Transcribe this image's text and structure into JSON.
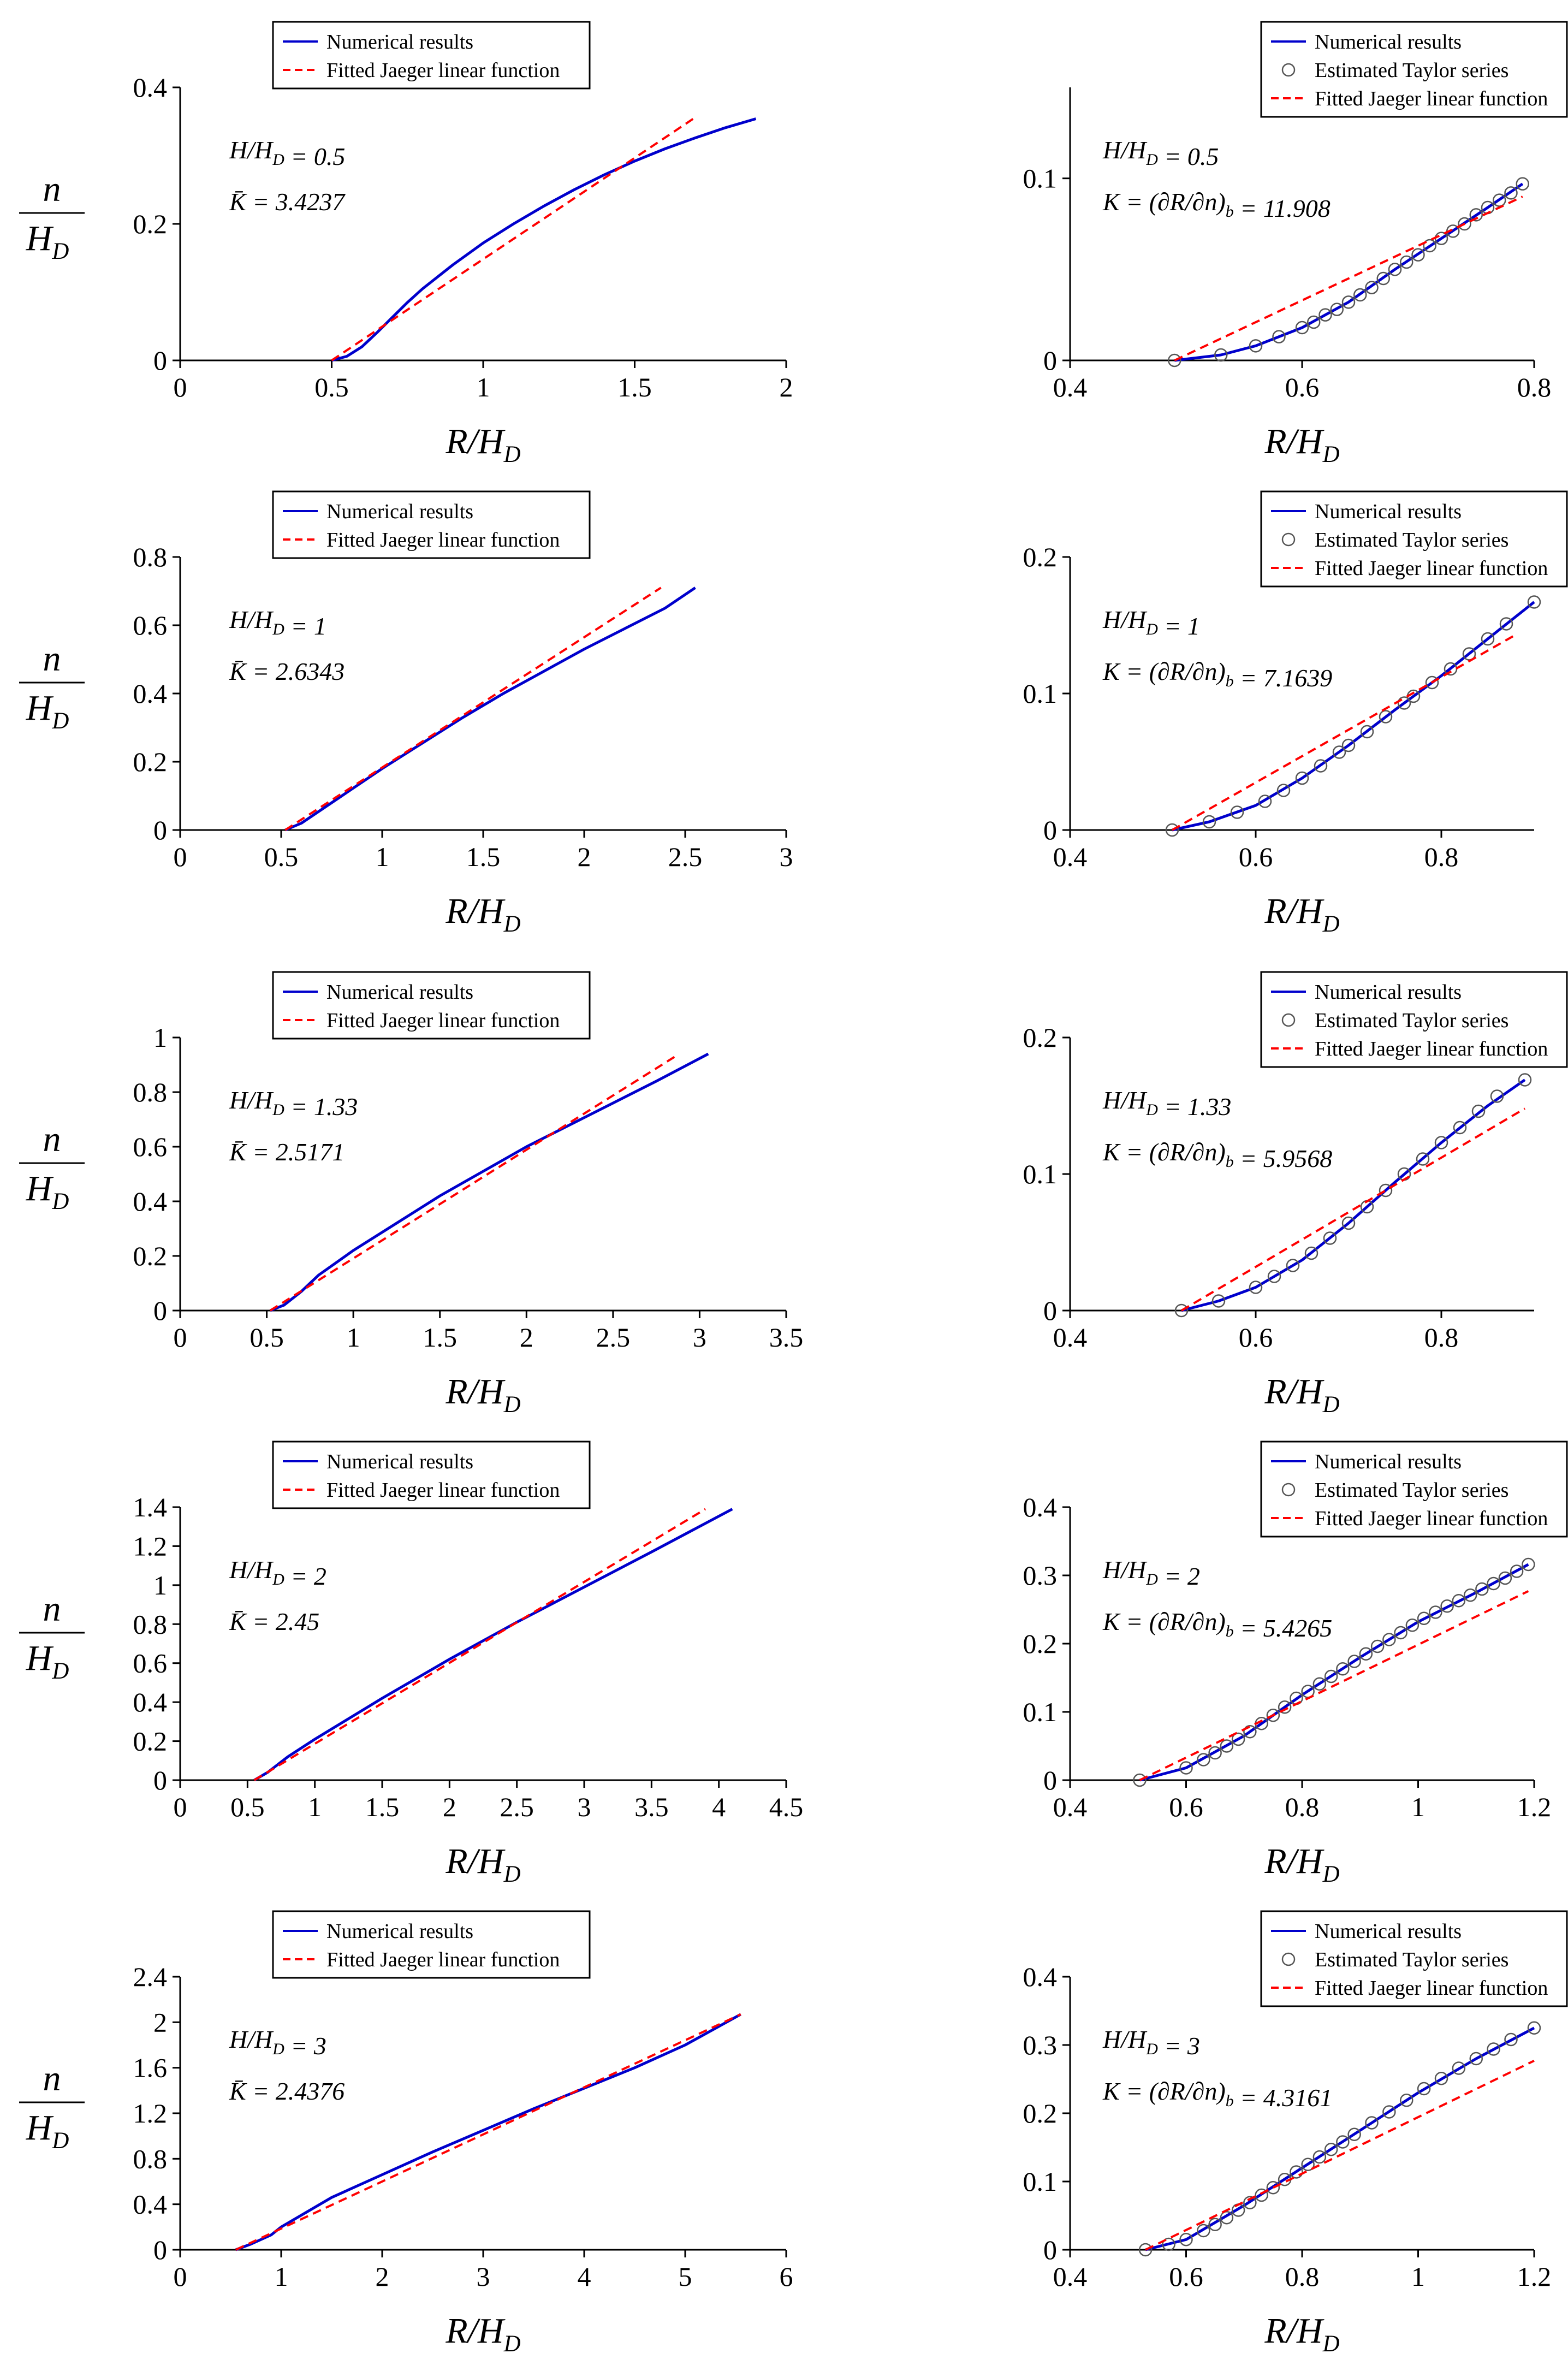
{
  "colors": {
    "numerical": "#0000cc",
    "fitted": "#ff0000",
    "taylor_marker": "#555555",
    "axis": "#000000"
  },
  "chart_data": [
    {
      "type": "line",
      "row": 1,
      "col": 1,
      "xlabel": "R/H_D",
      "ylabel": "n/H_D",
      "xlim": [
        0,
        2
      ],
      "ylim": [
        0,
        0.4
      ],
      "xticks": [
        0,
        0.5,
        1,
        1.5,
        2
      ],
      "yticks": [
        0,
        0.2,
        0.4
      ],
      "annotations": [
        "H/H_D = 0.5",
        "K̄ = 3.4237"
      ],
      "legend": [
        "Numerical results",
        "Fitted Jaeger linear function"
      ],
      "series": [
        {
          "name": "Numerical results",
          "style": "solid",
          "x": [
            0.5,
            0.55,
            0.6,
            0.65,
            0.7,
            0.75,
            0.8,
            0.9,
            1.0,
            1.1,
            1.2,
            1.3,
            1.4,
            1.5,
            1.6,
            1.7,
            1.8,
            1.9
          ],
          "y": [
            0,
            0.006,
            0.02,
            0.041,
            0.063,
            0.085,
            0.105,
            0.14,
            0.172,
            0.2,
            0.226,
            0.25,
            0.272,
            0.292,
            0.31,
            0.326,
            0.341,
            0.354
          ]
        },
        {
          "name": "Fitted Jaeger linear function",
          "style": "dashed",
          "x": [
            0.5,
            1.7
          ],
          "y": [
            0,
            0.356
          ]
        }
      ]
    },
    {
      "type": "line",
      "row": 1,
      "col": 2,
      "xlabel": "R/H_D",
      "ylabel": "",
      "xlim": [
        0.4,
        0.8
      ],
      "ylim": [
        0,
        0.15
      ],
      "xticks": [
        0.4,
        0.6,
        0.8
      ],
      "yticks": [
        0,
        0.1
      ],
      "annotations": [
        "H/H_D = 0.5",
        "K = (∂R/∂n)_b = 11.908"
      ],
      "legend": [
        "Numerical results",
        "Estimated Taylor series",
        "Fitted Jaeger linear function"
      ],
      "series": [
        {
          "name": "Numerical results",
          "style": "solid",
          "x": [
            0.49,
            0.53,
            0.56,
            0.6,
            0.64,
            0.68,
            0.72,
            0.76,
            0.79
          ],
          "y": [
            0,
            0.003,
            0.008,
            0.018,
            0.032,
            0.05,
            0.067,
            0.084,
            0.097
          ]
        },
        {
          "name": "Estimated Taylor series",
          "style": "marker",
          "x": [
            0.49,
            0.53,
            0.56,
            0.58,
            0.6,
            0.61,
            0.62,
            0.63,
            0.64,
            0.65,
            0.66,
            0.67,
            0.68,
            0.69,
            0.7,
            0.71,
            0.72,
            0.73,
            0.74,
            0.75,
            0.76,
            0.77,
            0.78,
            0.79
          ],
          "y": [
            0,
            0.003,
            0.008,
            0.013,
            0.018,
            0.021,
            0.025,
            0.028,
            0.032,
            0.036,
            0.04,
            0.045,
            0.05,
            0.054,
            0.058,
            0.063,
            0.067,
            0.071,
            0.075,
            0.08,
            0.084,
            0.088,
            0.092,
            0.097
          ]
        },
        {
          "name": "Fitted Jaeger linear function",
          "style": "dashed",
          "x": [
            0.49,
            0.79
          ],
          "y": [
            0,
            0.09
          ]
        }
      ]
    },
    {
      "type": "line",
      "row": 2,
      "col": 1,
      "xlabel": "R/H_D",
      "ylabel": "n/H_D",
      "xlim": [
        0,
        3
      ],
      "ylim": [
        0,
        0.8
      ],
      "xticks": [
        0,
        0.5,
        1,
        1.5,
        2,
        2.5,
        3
      ],
      "yticks": [
        0,
        0.2,
        0.4,
        0.6,
        0.8
      ],
      "annotations": [
        "H/H_D = 1",
        "K̄ = 2.6343"
      ],
      "legend": [
        "Numerical results",
        "Fitted Jaeger linear function"
      ],
      "series": [
        {
          "name": "Numerical results",
          "style": "solid",
          "x": [
            0.52,
            0.6,
            0.7,
            0.8,
            1.0,
            1.2,
            1.4,
            1.6,
            1.8,
            2.0,
            2.2,
            2.4,
            2.55
          ],
          "y": [
            0,
            0.02,
            0.06,
            0.1,
            0.18,
            0.255,
            0.33,
            0.4,
            0.465,
            0.53,
            0.59,
            0.65,
            0.71
          ]
        },
        {
          "name": "Fitted Jaeger linear function",
          "style": "dashed",
          "x": [
            0.52,
            2.38
          ],
          "y": [
            0,
            0.71
          ]
        }
      ]
    },
    {
      "type": "line",
      "row": 2,
      "col": 2,
      "xlabel": "R/H_D",
      "ylabel": "",
      "xlim": [
        0.4,
        0.9
      ],
      "ylim": [
        0,
        0.2
      ],
      "xticks": [
        0.4,
        0.6,
        0.8
      ],
      "yticks": [
        0,
        0.1,
        0.2
      ],
      "annotations": [
        "H/H_D = 1",
        "K = (∂R/∂n)_b = 7.1639"
      ],
      "legend": [
        "Numerical results",
        "Estimated Taylor series",
        "Fitted Jaeger linear function"
      ],
      "series": [
        {
          "name": "Numerical results",
          "style": "solid",
          "x": [
            0.51,
            0.55,
            0.6,
            0.65,
            0.7,
            0.75,
            0.8,
            0.85,
            0.9
          ],
          "y": [
            0,
            0.006,
            0.018,
            0.038,
            0.062,
            0.088,
            0.113,
            0.14,
            0.167
          ]
        },
        {
          "name": "Estimated Taylor series",
          "style": "marker",
          "x": [
            0.51,
            0.55,
            0.58,
            0.61,
            0.63,
            0.65,
            0.67,
            0.69,
            0.7,
            0.72,
            0.74,
            0.76,
            0.77,
            0.79,
            0.81,
            0.83,
            0.85,
            0.87,
            0.9
          ],
          "y": [
            0,
            0.006,
            0.013,
            0.021,
            0.029,
            0.038,
            0.047,
            0.057,
            0.062,
            0.072,
            0.083,
            0.093,
            0.098,
            0.108,
            0.118,
            0.129,
            0.14,
            0.151,
            0.167
          ]
        },
        {
          "name": "Fitted Jaeger linear function",
          "style": "dashed",
          "x": [
            0.51,
            0.88
          ],
          "y": [
            0,
            0.143
          ]
        }
      ]
    },
    {
      "type": "line",
      "row": 3,
      "col": 1,
      "xlabel": "R/H_D",
      "ylabel": "n/H_D",
      "xlim": [
        0,
        3.5
      ],
      "ylim": [
        0,
        1
      ],
      "xticks": [
        0,
        0.5,
        1,
        1.5,
        2,
        2.5,
        3,
        3.5
      ],
      "yticks": [
        0,
        0.2,
        0.4,
        0.6,
        0.8,
        1
      ],
      "annotations": [
        "H/H_D = 1.33",
        "K̄ = 2.5171"
      ],
      "legend": [
        "Numerical results",
        "Fitted Jaeger linear function"
      ],
      "series": [
        {
          "name": "Numerical results",
          "style": "solid",
          "x": [
            0.52,
            0.6,
            0.7,
            0.8,
            1.0,
            1.25,
            1.5,
            1.75,
            2.0,
            2.25,
            2.5,
            2.75,
            3.05
          ],
          "y": [
            0,
            0.02,
            0.07,
            0.13,
            0.22,
            0.32,
            0.42,
            0.51,
            0.6,
            0.68,
            0.76,
            0.84,
            0.94
          ]
        },
        {
          "name": "Fitted Jaeger linear function",
          "style": "dashed",
          "x": [
            0.52,
            2.87
          ],
          "y": [
            0,
            0.935
          ]
        }
      ]
    },
    {
      "type": "line",
      "row": 3,
      "col": 2,
      "xlabel": "R/H_D",
      "ylabel": "",
      "xlim": [
        0.4,
        0.9
      ],
      "ylim": [
        0,
        0.2
      ],
      "xticks": [
        0.4,
        0.6,
        0.8
      ],
      "yticks": [
        0,
        0.1,
        0.2
      ],
      "annotations": [
        "H/H_D = 1.33",
        "K = (∂R/∂n)_b = 5.9568"
      ],
      "legend": [
        "Numerical results",
        "Estimated Taylor series",
        "Fitted Jaeger linear function"
      ],
      "series": [
        {
          "name": "Numerical results",
          "style": "solid",
          "x": [
            0.52,
            0.56,
            0.6,
            0.65,
            0.7,
            0.75,
            0.8,
            0.85,
            0.89
          ],
          "y": [
            0,
            0.007,
            0.017,
            0.037,
            0.064,
            0.094,
            0.123,
            0.15,
            0.169
          ]
        },
        {
          "name": "Estimated Taylor series",
          "style": "marker",
          "x": [
            0.52,
            0.56,
            0.6,
            0.62,
            0.64,
            0.66,
            0.68,
            0.7,
            0.72,
            0.74,
            0.76,
            0.78,
            0.8,
            0.82,
            0.84,
            0.86,
            0.89
          ],
          "y": [
            0,
            0.007,
            0.017,
            0.025,
            0.033,
            0.042,
            0.053,
            0.064,
            0.076,
            0.088,
            0.1,
            0.111,
            0.123,
            0.134,
            0.146,
            0.157,
            0.169
          ]
        },
        {
          "name": "Fitted Jaeger linear function",
          "style": "dashed",
          "x": [
            0.52,
            0.89
          ],
          "y": [
            0,
            0.148
          ]
        }
      ]
    },
    {
      "type": "line",
      "row": 4,
      "col": 1,
      "xlabel": "R/H_D",
      "ylabel": "n/H_D",
      "xlim": [
        0,
        4.5
      ],
      "ylim": [
        0,
        1.4
      ],
      "xticks": [
        0,
        0.5,
        1,
        1.5,
        2,
        2.5,
        3,
        3.5,
        4,
        4.5
      ],
      "yticks": [
        0,
        0.2,
        0.4,
        0.6,
        0.8,
        1,
        1.2,
        1.4
      ],
      "annotations": [
        "H/H_D = 2",
        "K̄ = 2.45"
      ],
      "legend": [
        "Numerical results",
        "Fitted Jaeger linear function"
      ],
      "series": [
        {
          "name": "Numerical results",
          "style": "solid",
          "x": [
            0.55,
            0.65,
            0.8,
            1.0,
            1.5,
            2.0,
            2.5,
            3.0,
            3.5,
            4.1
          ],
          "y": [
            0,
            0.04,
            0.12,
            0.21,
            0.42,
            0.62,
            0.81,
            0.99,
            1.17,
            1.39
          ]
        },
        {
          "name": "Fitted Jaeger linear function",
          "style": "dashed",
          "x": [
            0.55,
            3.9
          ],
          "y": [
            0,
            1.39
          ]
        }
      ]
    },
    {
      "type": "line",
      "row": 4,
      "col": 2,
      "xlabel": "R/H_D",
      "ylabel": "",
      "xlim": [
        0.4,
        1.2
      ],
      "ylim": [
        0,
        0.4
      ],
      "xticks": [
        0.4,
        0.6,
        0.8,
        1,
        1.2
      ],
      "yticks": [
        0,
        0.1,
        0.2,
        0.3,
        0.4
      ],
      "annotations": [
        "H/H_D = 2",
        "K = (∂R/∂n)_b = 5.4265"
      ],
      "legend": [
        "Numerical results",
        "Estimated Taylor series",
        "Fitted Jaeger linear function"
      ],
      "series": [
        {
          "name": "Numerical results",
          "style": "solid",
          "x": [
            0.52,
            0.6,
            0.7,
            0.8,
            0.9,
            1.0,
            1.1,
            1.19
          ],
          "y": [
            0,
            0.018,
            0.065,
            0.125,
            0.18,
            0.232,
            0.275,
            0.316
          ]
        },
        {
          "name": "Estimated Taylor series",
          "style": "marker",
          "x": [
            0.52,
            0.6,
            0.63,
            0.65,
            0.67,
            0.69,
            0.71,
            0.73,
            0.75,
            0.77,
            0.79,
            0.81,
            0.83,
            0.85,
            0.87,
            0.89,
            0.91,
            0.93,
            0.95,
            0.97,
            0.99,
            1.01,
            1.03,
            1.05,
            1.07,
            1.09,
            1.11,
            1.13,
            1.15,
            1.17,
            1.19
          ],
          "y": [
            0,
            0.018,
            0.03,
            0.04,
            0.05,
            0.06,
            0.071,
            0.083,
            0.095,
            0.107,
            0.12,
            0.13,
            0.141,
            0.152,
            0.163,
            0.174,
            0.185,
            0.196,
            0.206,
            0.216,
            0.227,
            0.237,
            0.246,
            0.255,
            0.263,
            0.271,
            0.28,
            0.288,
            0.296,
            0.306,
            0.316
          ]
        },
        {
          "name": "Fitted Jaeger linear function",
          "style": "dashed",
          "x": [
            0.52,
            1.19
          ],
          "y": [
            0,
            0.277
          ]
        }
      ]
    },
    {
      "type": "line",
      "row": 5,
      "col": 1,
      "xlabel": "R/H_D",
      "ylabel": "n/H_D",
      "xlim": [
        0,
        6
      ],
      "ylim": [
        0,
        2.4
      ],
      "xticks": [
        0,
        1,
        2,
        3,
        4,
        5,
        6
      ],
      "yticks": [
        0,
        0.4,
        0.8,
        1.2,
        1.6,
        2,
        2.4
      ],
      "annotations": [
        "H/H_D = 3",
        "K̄ = 2.4376"
      ],
      "legend": [
        "Numerical results",
        "Fitted Jaeger linear function"
      ],
      "series": [
        {
          "name": "Numerical results",
          "style": "solid",
          "x": [
            0.55,
            0.7,
            0.9,
            1.0,
            1.5,
            2.0,
            2.5,
            3.0,
            3.5,
            4.0,
            4.5,
            5.0,
            5.55
          ],
          "y": [
            0,
            0.05,
            0.13,
            0.2,
            0.46,
            0.66,
            0.86,
            1.05,
            1.24,
            1.42,
            1.6,
            1.8,
            2.07
          ]
        },
        {
          "name": "Fitted Jaeger linear function",
          "style": "dashed",
          "x": [
            0.55,
            5.55
          ],
          "y": [
            0,
            2.07
          ]
        }
      ]
    },
    {
      "type": "line",
      "row": 5,
      "col": 2,
      "xlabel": "R/H_D",
      "ylabel": "",
      "xlim": [
        0.4,
        1.2
      ],
      "ylim": [
        0,
        0.4
      ],
      "xticks": [
        0.4,
        0.6,
        0.8,
        1,
        1.2
      ],
      "yticks": [
        0,
        0.1,
        0.2,
        0.3,
        0.4
      ],
      "annotations": [
        "H/H_D = 3",
        "K = (∂R/∂n)_b = 4.3161"
      ],
      "legend": [
        "Numerical results",
        "Estimated Taylor series",
        "Fitted Jaeger linear function"
      ],
      "series": [
        {
          "name": "Numerical results",
          "style": "solid",
          "x": [
            0.53,
            0.6,
            0.7,
            0.8,
            0.9,
            1.0,
            1.1,
            1.2
          ],
          "y": [
            0,
            0.015,
            0.065,
            0.12,
            0.175,
            0.23,
            0.28,
            0.325
          ]
        },
        {
          "name": "Estimated Taylor series",
          "style": "marker",
          "x": [
            0.53,
            0.57,
            0.6,
            0.63,
            0.65,
            0.67,
            0.69,
            0.71,
            0.73,
            0.75,
            0.77,
            0.79,
            0.81,
            0.83,
            0.85,
            0.87,
            0.89,
            0.92,
            0.95,
            0.98,
            1.01,
            1.04,
            1.07,
            1.1,
            1.13,
            1.16,
            1.2
          ],
          "y": [
            0,
            0.008,
            0.015,
            0.028,
            0.037,
            0.047,
            0.058,
            0.069,
            0.08,
            0.091,
            0.103,
            0.114,
            0.125,
            0.136,
            0.147,
            0.158,
            0.169,
            0.186,
            0.202,
            0.219,
            0.236,
            0.251,
            0.266,
            0.28,
            0.294,
            0.308,
            0.325
          ]
        },
        {
          "name": "Fitted Jaeger linear function",
          "style": "dashed",
          "x": [
            0.53,
            1.2
          ],
          "y": [
            0,
            0.277
          ]
        }
      ]
    }
  ]
}
